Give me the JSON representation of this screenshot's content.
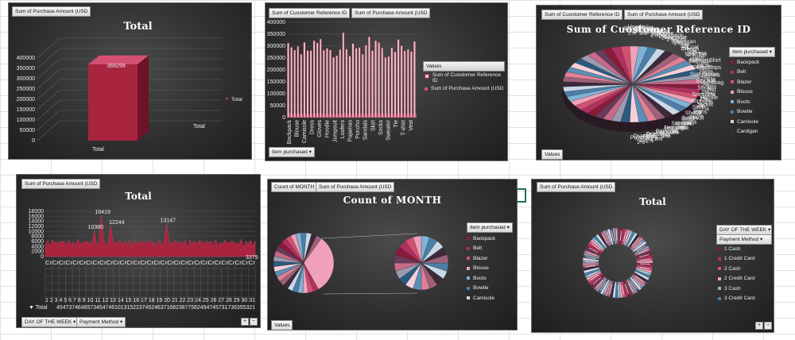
{
  "charts": {
    "c1": {
      "field": "Sum of Purchase Amount (USD",
      "title": "Total",
      "legend_label": "Total",
      "x_label": "Total",
      "y_ticks": [
        "400000",
        "350000",
        "300000",
        "250000",
        "200000",
        "150000",
        "100000",
        "50000",
        "0"
      ],
      "data_label": "369299",
      "cat_label": "Total"
    },
    "c2": {
      "fields": [
        "Sum of Cuostomer Reference ID",
        "Sum of Purchase Amount (USD"
      ],
      "y_ticks": [
        "400000",
        "350000",
        "300000",
        "250000",
        "200000",
        "150000",
        "100000",
        "50000",
        "0"
      ],
      "x_labels": [
        "Backpack",
        "Blouse",
        "Camisole",
        "Dress",
        "Gloves",
        "Hoodie",
        "Jumpsuit",
        "Loafers",
        "Pajamas",
        "Poncho",
        "Sandals",
        "Skirt",
        "Socks",
        "Sweater",
        "Tie",
        "T-shirt",
        "Vest"
      ],
      "legend_title": "Values",
      "legend_items": [
        "Sum of Cuostomer Reference ID",
        "Sum of Purchase Amount (USD"
      ],
      "row_field": "Item purchased"
    },
    "c3": {
      "fields": [
        "Sum of Cuostomer Reference ID",
        "Sum of Purchase Amount (USD"
      ],
      "title": "Sum of Cuostomer Reference ID",
      "filter": "Item purchased",
      "legend_items": [
        "Backpack",
        "Belt",
        "Blazer",
        "Blouse",
        "Boots",
        "Bowtie",
        "Camisole",
        "Cardigan"
      ],
      "values_btn": "Values",
      "slice_labels_left": [
        "Hoodie",
        "Wallet",
        "Vest",
        "Belt",
        "Backpack",
        "T-shirt",
        "Tie",
        "Trench",
        "Tank Top",
        "Swimsuit",
        "Sweater",
        "Sunglasses",
        "Sun hat",
        "Socks",
        "Sneakers",
        "Slippers",
        "Skirt",
        "Shorts",
        "Scarf",
        "Sandals",
        "Romper",
        "Raincoat",
        "Polo Shirt",
        "Pants",
        "Pajamas"
      ],
      "slice_labels_right": [
        "Blazer",
        "Blouse",
        "Boots",
        "Bowtie",
        "Camisole",
        "Cardigan",
        "Coat",
        "Dress",
        "Flannel Shirt",
        "Flip-Flops",
        "Gloves",
        "Handbag",
        "Hat",
        "Hoodie",
        "Jacket",
        "Jeans",
        "Jumpsuit",
        "Kimono",
        "Leggings",
        "Loafers",
        "Onesie",
        "Overalls"
      ],
      "pct": "2%"
    },
    "c4": {
      "field": "Sum of Purchase Amount (USD",
      "title": "Total",
      "y_ticks": [
        "18000",
        "16000",
        "14000",
        "12000",
        "10000",
        "8000",
        "6000",
        "4000",
        "2000",
        "0"
      ],
      "peak_labels": [
        "16419",
        "12244",
        "13147",
        "10380"
      ],
      "legend_label": "Total",
      "filters": [
        "DAY OF THE WEEK",
        "Payment Method"
      ],
      "cat_row": "CrCrCrCrCrCrCrCrCrCrCrCrCrCrCrCrCrCrCrCrCrCrCrCrCrCrCrCrCrCrCr",
      "num_row": "1 2 3 4 5 6 7 8 9 10 11 12 13 14 15 16 17 18 19 20 21 22 23 24 25 26 27 28 29 30 31",
      "x_row": "45473746485734547461013152237452463716823877562494745731736355321",
      "tail_label": "3379"
    },
    "c5": {
      "fields": [
        "Count of MONTH",
        "Sum of Purchase Amount (USD"
      ],
      "title": "Count of MONTH",
      "filter": "Item purchased",
      "legend_items": [
        "Backpack",
        "Belt",
        "Blazer",
        "Blouse",
        "Boots",
        "Bowtie",
        "Camisole"
      ],
      "values_btn": "Values"
    },
    "c6": {
      "field": "Sum of Purchase Amount (USD",
      "title": "Total",
      "filters": [
        "DAY OF THE WEEK",
        "Payment Method"
      ],
      "legend_items": [
        "1 Cash",
        "1 Credit Card",
        "2 Cash",
        "2 Credit Card",
        "3 Cash",
        "3 Credit Card"
      ]
    }
  },
  "chart_data": [
    {
      "type": "bar",
      "title": "Total",
      "categories": [
        "Total"
      ],
      "values": [
        369299
      ],
      "ylim": [
        0,
        400000
      ],
      "xlabel": "Total",
      "legend": "right"
    },
    {
      "type": "bar",
      "categories": [
        "Backpack",
        "Blouse",
        "Camisole",
        "Dress",
        "Gloves",
        "Hoodie",
        "Jumpsuit",
        "Loafers",
        "Pajamas",
        "Poncho",
        "Sandals",
        "Skirt",
        "Socks",
        "Sweater",
        "Tie",
        "T-shirt",
        "Vest"
      ],
      "series": [
        {
          "name": "Sum of Cuostomer Reference ID",
          "values": [
            340000,
            290000,
            270000,
            300000,
            280000,
            305000,
            270000,
            290000,
            330000,
            300000,
            320000,
            300000,
            290000,
            270000,
            250000,
            280000,
            280000
          ]
        },
        {
          "name": "Sum of Purchase Amount (USD",
          "values": [
            20000,
            16000,
            15000,
            17000,
            15000,
            17000,
            15000,
            16000,
            18000,
            17000,
            17000,
            17000,
            16000,
            15000,
            14000,
            15000,
            15000
          ]
        }
      ],
      "ylim": [
        0,
        400000
      ],
      "legend": "right"
    },
    {
      "type": "pie",
      "title": "Sum of Cuostomer Reference ID",
      "slices": 47,
      "slice_percent": "2%",
      "legend": "right"
    },
    {
      "type": "area",
      "title": "Total",
      "ylim": [
        0,
        18000
      ],
      "peaks": [
        16419,
        12244,
        13147,
        10380
      ],
      "legend": "bottom-left"
    },
    {
      "type": "pie",
      "title": "Count of MONTH",
      "subtype": "pie-of-pie",
      "legend": "right"
    },
    {
      "type": "pie",
      "title": "Total",
      "subtype": "doughnut",
      "legend": "right"
    }
  ],
  "colors": {
    "bar": "#a8243f",
    "bar_light": "#d45070",
    "bar2": "#f0c0cc",
    "palette": [
      "#8b1a3a",
      "#b03060",
      "#d45070",
      "#f0a0b8",
      "#7fb3d5",
      "#4a7fa8",
      "#c8d8e8",
      "#3a2a3a",
      "#a0607a",
      "#e08098",
      "#5a8fb8",
      "#f5d0dc",
      "#2a5a80",
      "#9a9ab0",
      "#c86a8a",
      "#6a3a5a"
    ]
  }
}
